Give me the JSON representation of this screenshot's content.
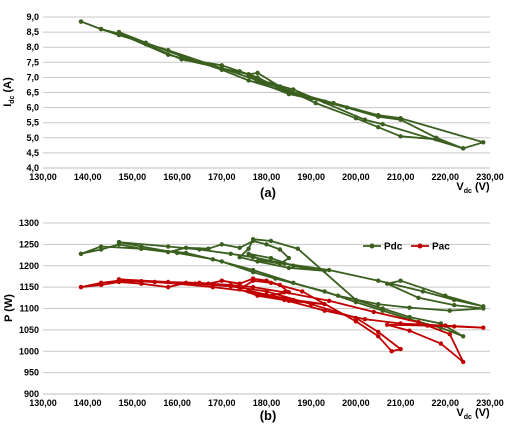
{
  "chart_data": [
    {
      "id": "a",
      "type": "line",
      "panel_label": "(a)",
      "ylabel": {
        "main": "I",
        "sub": "dc",
        "tail": " (A)"
      },
      "xlabel": {
        "main": "V",
        "sub": "dc",
        "tail": " (V)"
      },
      "xlim": [
        130,
        230
      ],
      "ylim": [
        4,
        9
      ],
      "x_ticks": [
        "130,00",
        "140,00",
        "150,00",
        "160,00",
        "170,00",
        "180,00",
        "190,00",
        "200,00",
        "210,00",
        "220,00",
        "230,00"
      ],
      "y_ticks": [
        "4,0",
        "4,5",
        "5,0",
        "5,5",
        "6,0",
        "6,5",
        "7,0",
        "7,5",
        "8,0",
        "8,5",
        "9,0"
      ],
      "grid": "horizontal",
      "colors": {
        "line": "#3a5f1f",
        "marker": "#3a5f1f"
      },
      "series": [
        {
          "x": [
            138.5,
            143,
            147,
            158,
            162,
            170,
            174,
            176,
            178,
            184,
            190,
            193,
            185,
            178,
            176,
            181,
            186,
            202,
            206,
            224,
            228.5,
            210,
            205,
            195,
            185,
            178,
            170,
            158,
            147,
            143,
            138.5
          ],
          "y": [
            8.85,
            8.6,
            8.45,
            7.75,
            7.6,
            7.4,
            7.2,
            7.1,
            7.0,
            6.55,
            6.3,
            6.2,
            6.45,
            6.85,
            7.05,
            6.8,
            6.6,
            5.6,
            5.45,
            4.65,
            4.85,
            5.65,
            5.75,
            6.15,
            6.55,
            6.9,
            7.3,
            7.9,
            8.4,
            8.6,
            8.85
          ]
        },
        {
          "x": [
            147,
            153,
            161,
            170,
            176,
            178,
            183,
            191,
            200,
            205,
            210,
            218,
            224,
            218,
            210,
            205,
            198,
            185,
            176,
            170,
            161,
            153,
            147
          ],
          "y": [
            8.5,
            8.1,
            7.6,
            7.3,
            7.1,
            7.15,
            6.7,
            6.15,
            5.65,
            5.35,
            5.05,
            4.95,
            4.65,
            5.0,
            5.6,
            5.7,
            6.0,
            6.5,
            6.9,
            7.25,
            7.7,
            8.15,
            8.5
          ]
        }
      ]
    },
    {
      "id": "b",
      "type": "line",
      "panel_label": "(b)",
      "ylabel": {
        "main": "P (W)",
        "sub": "",
        "tail": ""
      },
      "xlabel": {
        "main": "V",
        "sub": "dc",
        "tail": " (V)"
      },
      "xlim": [
        130,
        230
      ],
      "ylim": [
        900,
        1300
      ],
      "x_ticks": [
        "130,00",
        "140,00",
        "150,00",
        "160,00",
        "170,00",
        "180,00",
        "190,00",
        "200,00",
        "210,00",
        "220,00",
        "230,00"
      ],
      "y_ticks": [
        "900",
        "950",
        "1000",
        "1050",
        "1100",
        "1150",
        "1200",
        "1250",
        "1300"
      ],
      "grid": "horizontal",
      "legend_position": "top-right",
      "series": [
        {
          "name": "Pdc",
          "color": "#3a5f1f",
          "paths": [
            {
              "x": [
                138.5,
                143,
                147,
                152,
                158,
                162,
                167,
                170,
                174,
                177,
                180,
                183,
                185,
                183,
                179,
                176,
                181,
                186,
                193,
                185,
                178,
                174,
                176,
                177,
                181,
                187,
                200,
                206,
                212,
                219,
                224,
                219,
                212,
                206,
                200,
                193,
                182,
                177,
                170,
                162,
                152,
                143,
                138.5
              ],
              "y": [
                1228,
                1238,
                1250,
                1240,
                1232,
                1242,
                1240,
                1250,
                1242,
                1258,
                1250,
                1238,
                1218,
                1205,
                1212,
                1228,
                1218,
                1200,
                1188,
                1195,
                1210,
                1220,
                1240,
                1262,
                1258,
                1240,
                1120,
                1100,
                1080,
                1065,
                1035,
                1055,
                1075,
                1095,
                1115,
                1140,
                1170,
                1185,
                1210,
                1230,
                1240,
                1245,
                1228
              ]
            },
            {
              "x": [
                147,
                158,
                165,
                172,
                177,
                184,
                194,
                205,
                215,
                222,
                228.5,
                220,
                210,
                207,
                214,
                222,
                228.5,
                221,
                212,
                205,
                196,
                186,
                177,
                168,
                160,
                152,
                147
              ],
              "y": [
                1255,
                1245,
                1238,
                1228,
                1220,
                1205,
                1190,
                1165,
                1140,
                1120,
                1105,
                1130,
                1165,
                1158,
                1125,
                1108,
                1100,
                1095,
                1102,
                1110,
                1130,
                1160,
                1190,
                1215,
                1230,
                1245,
                1255
              ]
            }
          ]
        },
        {
          "name": "Pac",
          "color": "#c00000",
          "paths": [
            {
              "x": [
                138.5,
                143,
                147,
                152,
                158,
                162,
                167,
                170,
                174,
                177,
                180,
                183,
                185,
                180,
                176,
                180,
                186,
                193,
                185,
                178,
                174,
                177,
                181,
                188,
                200,
                205,
                208,
                210,
                205,
                200,
                190,
                180,
                172,
                164,
                155,
                147,
                143,
                138.5
              ],
              "y": [
                1150,
                1155,
                1162,
                1158,
                1150,
                1160,
                1158,
                1165,
                1158,
                1170,
                1165,
                1155,
                1138,
                1130,
                1142,
                1132,
                1120,
                1110,
                1118,
                1130,
                1145,
                1165,
                1160,
                1140,
                1070,
                1035,
                1000,
                1005,
                1045,
                1078,
                1110,
                1140,
                1152,
                1158,
                1162,
                1165,
                1160,
                1150
              ]
            },
            {
              "x": [
                147,
                158,
                165,
                172,
                177,
                184,
                194,
                204,
                214,
                221,
                224,
                219,
                212,
                207,
                216,
                222,
                228.5,
                220,
                210,
                202,
                193,
                184,
                176,
                168,
                160,
                152,
                147
              ],
              "y": [
                1168,
                1162,
                1160,
                1155,
                1150,
                1138,
                1118,
                1092,
                1068,
                1040,
                975,
                1018,
                1048,
                1062,
                1060,
                1058,
                1055,
                1060,
                1065,
                1075,
                1095,
                1120,
                1140,
                1150,
                1158,
                1164,
                1168
              ]
            }
          ]
        }
      ]
    }
  ]
}
